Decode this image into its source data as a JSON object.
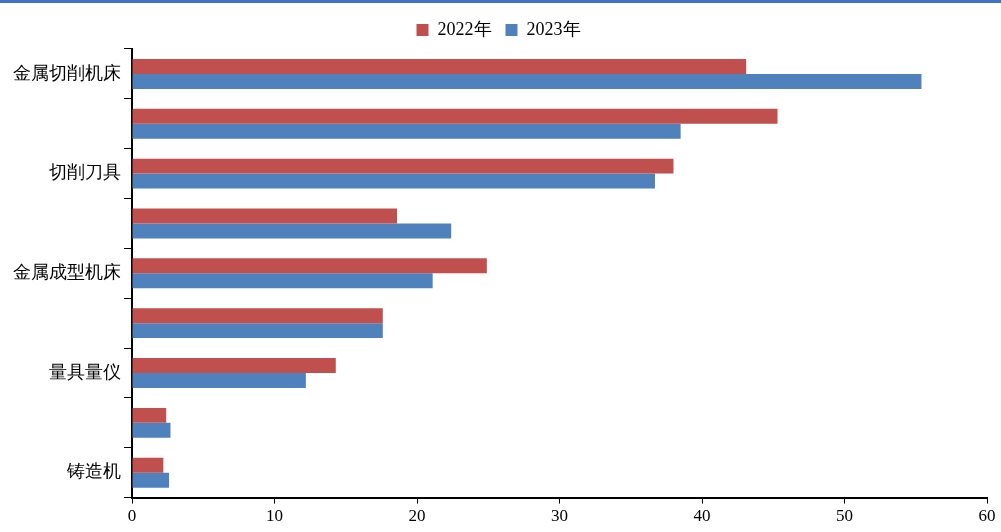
{
  "chart_data": {
    "type": "bar",
    "orientation": "horizontal",
    "categories": [
      "金属切削机床",
      null,
      "切削刀具",
      null,
      "金属成型机床",
      null,
      "量具量仪",
      null,
      "铸造机"
    ],
    "series": [
      {
        "name": "2022年",
        "color": "#c0504d",
        "values": [
          43.1,
          45.3,
          38.0,
          18.6,
          24.9,
          17.6,
          14.3,
          2.4,
          2.2
        ]
      },
      {
        "name": "2023年",
        "color": "#4f81bd",
        "values": [
          55.4,
          38.5,
          36.7,
          22.4,
          21.1,
          17.6,
          12.2,
          2.7,
          2.6
        ]
      }
    ],
    "xlim": [
      0,
      60
    ],
    "xticks": [
      0,
      10,
      20,
      30,
      40,
      50,
      60
    ],
    "grid": false,
    "legend": "top"
  }
}
